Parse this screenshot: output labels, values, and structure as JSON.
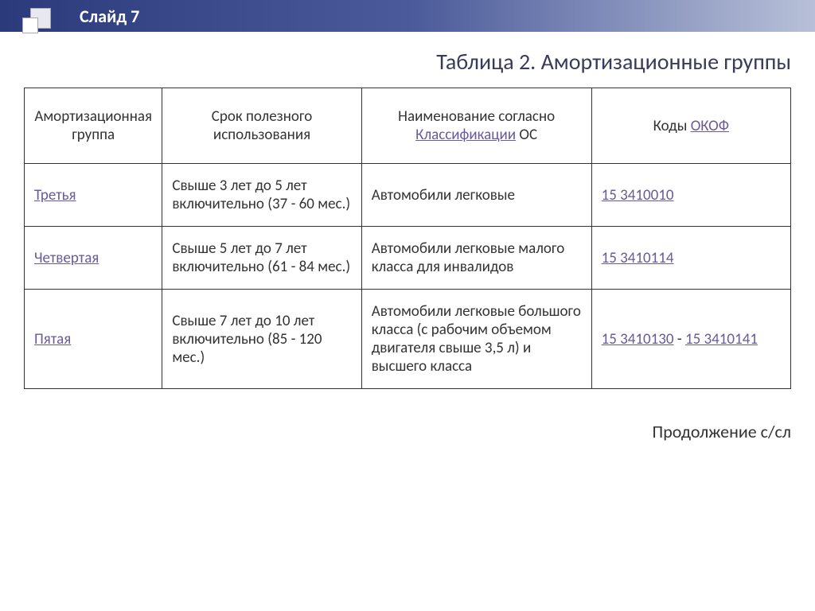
{
  "header": {
    "slide_number": "Слайд 7"
  },
  "title": "Таблица 2. Амортизационные группы",
  "table": {
    "headers": {
      "col1": "Амортизационная группа",
      "col2": "Срок полезного использования",
      "col3_pre": "Наименование согласно ",
      "col3_link": "Классификации",
      "col3_post": " ОС",
      "col4_pre": "Коды ",
      "col4_link": "ОКОФ"
    },
    "rows": [
      {
        "group": "Третья",
        "term": "Свыше 3 лет до 5 лет включительно (37 - 60 мес.)",
        "name": "Автомобили легковые",
        "code1": "15 3410010",
        "code_sep": "",
        "code2": ""
      },
      {
        "group": "Четвертая",
        "term": " Свыше 5 лет до 7 лет включительно (61 - 84 мес.)",
        "name": "Автомобили легковые малого класса для инвалидов",
        "code1": "15 3410114",
        "code_sep": "",
        "code2": ""
      },
      {
        "group": "Пятая",
        "term": " Свыше 7 лет до 10 лет включительно (85 - 120 мес.)",
        "name": "Автомобили легковые большого класса (с рабочим объемом двигателя свыше 3,5 л) и высшего класса",
        "code1": "15 3410130",
        "code_sep": " - ",
        "code2": "15 3410141"
      }
    ]
  },
  "footer": "Продолжение с/сл",
  "colors": {
    "header_gradient_start": "#2a3a7a",
    "header_gradient_end": "#b8c0d8",
    "link_color": "#6a5a9a",
    "text_color": "#333333",
    "title_color": "#3a3a5a",
    "border_color": "#333333"
  }
}
